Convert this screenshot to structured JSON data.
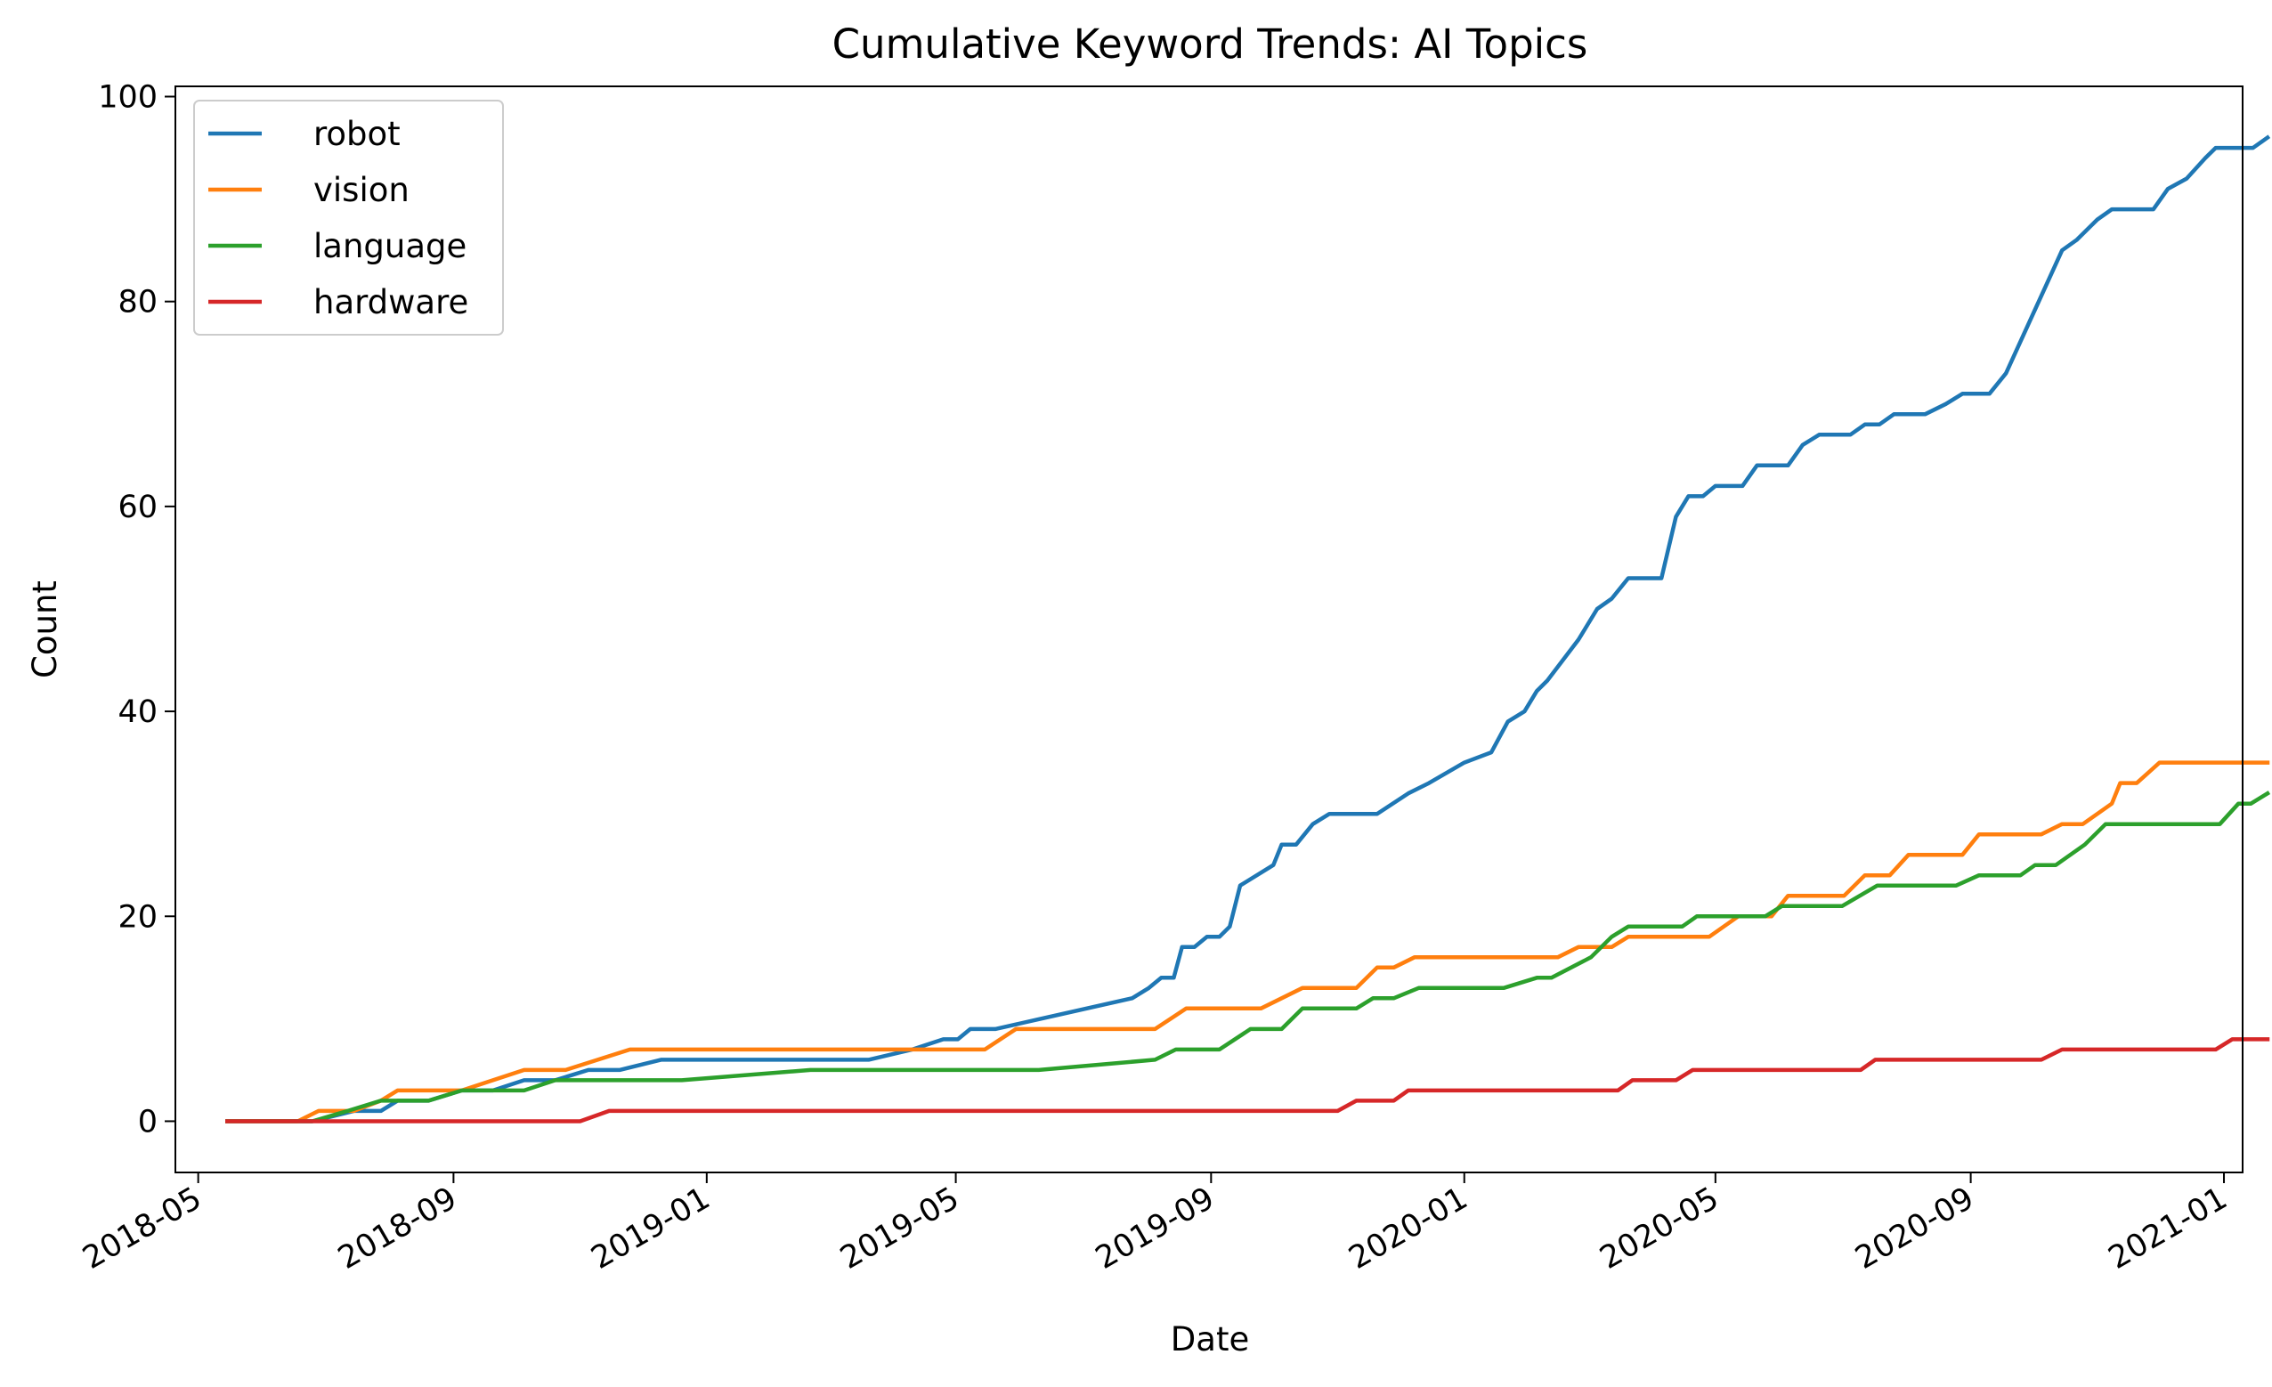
{
  "chart_data": {
    "type": "line",
    "title": "Cumulative Keyword Trends: AI Topics",
    "xlabel": "Date",
    "ylabel": "Count",
    "x_ticks": [
      "2018-05",
      "2018-09",
      "2019-01",
      "2019-05",
      "2019-09",
      "2020-01",
      "2020-05",
      "2020-09",
      "2021-01"
    ],
    "y_ticks": [
      0,
      20,
      40,
      60,
      80,
      100
    ],
    "ylim": [
      -5,
      101
    ],
    "xlim": [
      "2018-04-20",
      "2021-01-10"
    ],
    "grid": false,
    "legend_position": "top-left",
    "series": [
      {
        "name": "robot",
        "color": "#1f77b4",
        "points": [
          [
            "2018-05-15",
            0
          ],
          [
            "2018-06-25",
            0
          ],
          [
            "2018-07-15",
            1
          ],
          [
            "2018-07-28",
            1
          ],
          [
            "2018-08-05",
            2
          ],
          [
            "2018-08-20",
            2
          ],
          [
            "2018-09-05",
            3
          ],
          [
            "2018-09-20",
            3
          ],
          [
            "2018-10-05",
            4
          ],
          [
            "2018-10-20",
            4
          ],
          [
            "2018-11-05",
            5
          ],
          [
            "2018-11-20",
            5
          ],
          [
            "2018-12-10",
            6
          ],
          [
            "2019-03-20",
            6
          ],
          [
            "2019-04-10",
            7
          ],
          [
            "2019-04-25",
            8
          ],
          [
            "2019-05-02",
            8
          ],
          [
            "2019-05-08",
            9
          ],
          [
            "2019-05-20",
            9
          ],
          [
            "2019-07-25",
            12
          ],
          [
            "2019-08-02",
            13
          ],
          [
            "2019-08-08",
            14
          ],
          [
            "2019-08-14",
            14
          ],
          [
            "2019-08-18",
            17
          ],
          [
            "2019-08-24",
            17
          ],
          [
            "2019-08-30",
            18
          ],
          [
            "2019-09-05",
            18
          ],
          [
            "2019-09-10",
            19
          ],
          [
            "2019-09-15",
            23
          ],
          [
            "2019-10-01",
            25
          ],
          [
            "2019-10-05",
            27
          ],
          [
            "2019-10-12",
            27
          ],
          [
            "2019-10-20",
            29
          ],
          [
            "2019-10-28",
            30
          ],
          [
            "2019-11-20",
            30
          ],
          [
            "2019-12-05",
            32
          ],
          [
            "2019-12-15",
            33
          ],
          [
            "2020-01-01",
            35
          ],
          [
            "2020-01-14",
            36
          ],
          [
            "2020-01-22",
            39
          ],
          [
            "2020-01-30",
            40
          ],
          [
            "2020-02-05",
            42
          ],
          [
            "2020-02-10",
            43
          ],
          [
            "2020-02-25",
            47
          ],
          [
            "2020-03-05",
            50
          ],
          [
            "2020-03-12",
            51
          ],
          [
            "2020-03-20",
            53
          ],
          [
            "2020-04-05",
            53
          ],
          [
            "2020-04-12",
            59
          ],
          [
            "2020-04-18",
            61
          ],
          [
            "2020-04-25",
            61
          ],
          [
            "2020-05-01",
            62
          ],
          [
            "2020-05-14",
            62
          ],
          [
            "2020-05-21",
            64
          ],
          [
            "2020-06-05",
            64
          ],
          [
            "2020-06-12",
            66
          ],
          [
            "2020-06-20",
            67
          ],
          [
            "2020-07-05",
            67
          ],
          [
            "2020-07-12",
            68
          ],
          [
            "2020-07-19",
            68
          ],
          [
            "2020-07-26",
            69
          ],
          [
            "2020-08-10",
            69
          ],
          [
            "2020-08-20",
            70
          ],
          [
            "2020-08-28",
            71
          ],
          [
            "2020-09-10",
            71
          ],
          [
            "2020-09-18",
            73
          ],
          [
            "2020-10-15",
            85
          ],
          [
            "2020-10-22",
            86
          ],
          [
            "2020-11-01",
            88
          ],
          [
            "2020-11-08",
            89
          ],
          [
            "2020-11-28",
            89
          ],
          [
            "2020-12-05",
            91
          ],
          [
            "2020-12-14",
            92
          ],
          [
            "2020-12-23",
            94
          ],
          [
            "2020-12-28",
            95
          ],
          [
            "2021-01-08",
            95
          ],
          [
            "2021-01-15",
            95
          ],
          [
            "2021-01-22",
            96
          ]
        ]
      },
      {
        "name": "vision",
        "color": "#ff7f0e",
        "points": [
          [
            "2018-05-15",
            0
          ],
          [
            "2018-06-18",
            0
          ],
          [
            "2018-06-28",
            1
          ],
          [
            "2018-07-15",
            1
          ],
          [
            "2018-07-28",
            2
          ],
          [
            "2018-08-05",
            3
          ],
          [
            "2018-09-05",
            3
          ],
          [
            "2018-10-05",
            5
          ],
          [
            "2018-10-25",
            5
          ],
          [
            "2018-11-25",
            7
          ],
          [
            "2019-05-15",
            7
          ],
          [
            "2019-05-30",
            9
          ],
          [
            "2019-08-05",
            9
          ],
          [
            "2019-08-20",
            11
          ],
          [
            "2019-09-25",
            11
          ],
          [
            "2019-10-15",
            13
          ],
          [
            "2019-11-10",
            13
          ],
          [
            "2019-11-20",
            15
          ],
          [
            "2019-11-28",
            15
          ],
          [
            "2019-12-08",
            16
          ],
          [
            "2020-02-10",
            16
          ],
          [
            "2020-02-15",
            16
          ],
          [
            "2020-02-25",
            17
          ],
          [
            "2020-03-12",
            17
          ],
          [
            "2020-03-20",
            18
          ],
          [
            "2020-04-28",
            18
          ],
          [
            "2020-05-12",
            20
          ],
          [
            "2020-05-28",
            20
          ],
          [
            "2020-06-05",
            22
          ],
          [
            "2020-06-25",
            22
          ],
          [
            "2020-07-02",
            22
          ],
          [
            "2020-07-12",
            24
          ],
          [
            "2020-07-24",
            24
          ],
          [
            "2020-08-02",
            26
          ],
          [
            "2020-08-28",
            26
          ],
          [
            "2020-09-05",
            28
          ],
          [
            "2020-10-05",
            28
          ],
          [
            "2020-10-15",
            29
          ],
          [
            "2020-10-25",
            29
          ],
          [
            "2020-11-08",
            31
          ],
          [
            "2020-11-12",
            33
          ],
          [
            "2020-11-20",
            33
          ],
          [
            "2020-12-01",
            35
          ],
          [
            "2021-01-22",
            35
          ]
        ]
      },
      {
        "name": "language",
        "color": "#2ca02c",
        "points": [
          [
            "2018-05-15",
            0
          ],
          [
            "2018-06-25",
            0
          ],
          [
            "2018-07-12",
            1
          ],
          [
            "2018-07-28",
            2
          ],
          [
            "2018-08-05",
            2
          ],
          [
            "2018-08-20",
            2
          ],
          [
            "2018-09-05",
            3
          ],
          [
            "2018-10-05",
            3
          ],
          [
            "2018-10-20",
            4
          ],
          [
            "2018-12-20",
            4
          ],
          [
            "2019-02-20",
            5
          ],
          [
            "2019-06-10",
            5
          ],
          [
            "2019-08-05",
            6
          ],
          [
            "2019-08-15",
            7
          ],
          [
            "2019-09-05",
            7
          ],
          [
            "2019-09-20",
            9
          ],
          [
            "2019-10-05",
            9
          ],
          [
            "2019-10-15",
            11
          ],
          [
            "2019-11-10",
            11
          ],
          [
            "2019-11-18",
            12
          ],
          [
            "2019-11-28",
            12
          ],
          [
            "2019-12-10",
            13
          ],
          [
            "2020-01-20",
            13
          ],
          [
            "2020-02-05",
            14
          ],
          [
            "2020-02-12",
            14
          ],
          [
            "2020-03-02",
            16
          ],
          [
            "2020-03-12",
            18
          ],
          [
            "2020-03-20",
            19
          ],
          [
            "2020-04-15",
            19
          ],
          [
            "2020-04-22",
            20
          ],
          [
            "2020-05-25",
            20
          ],
          [
            "2020-06-02",
            21
          ],
          [
            "2020-07-01",
            21
          ],
          [
            "2020-07-18",
            23
          ],
          [
            "2020-08-25",
            23
          ],
          [
            "2020-09-05",
            24
          ],
          [
            "2020-09-25",
            24
          ],
          [
            "2020-10-02",
            25
          ],
          [
            "2020-10-12",
            25
          ],
          [
            "2020-10-26",
            27
          ],
          [
            "2020-11-05",
            29
          ],
          [
            "2020-12-30",
            29
          ],
          [
            "2021-01-08",
            31
          ],
          [
            "2021-01-14",
            31
          ],
          [
            "2021-01-22",
            32
          ]
        ]
      },
      {
        "name": "hardware",
        "color": "#d62728",
        "points": [
          [
            "2018-05-15",
            0
          ],
          [
            "2018-11-01",
            0
          ],
          [
            "2018-11-15",
            1
          ],
          [
            "2019-11-01",
            1
          ],
          [
            "2019-11-10",
            2
          ],
          [
            "2019-11-28",
            2
          ],
          [
            "2019-12-05",
            3
          ],
          [
            "2020-03-15",
            3
          ],
          [
            "2020-03-22",
            4
          ],
          [
            "2020-04-12",
            4
          ],
          [
            "2020-04-20",
            5
          ],
          [
            "2020-07-10",
            5
          ],
          [
            "2020-07-17",
            6
          ],
          [
            "2020-10-05",
            6
          ],
          [
            "2020-10-15",
            7
          ],
          [
            "2020-12-28",
            7
          ],
          [
            "2021-01-05",
            8
          ],
          [
            "2021-01-22",
            8
          ]
        ]
      }
    ]
  }
}
